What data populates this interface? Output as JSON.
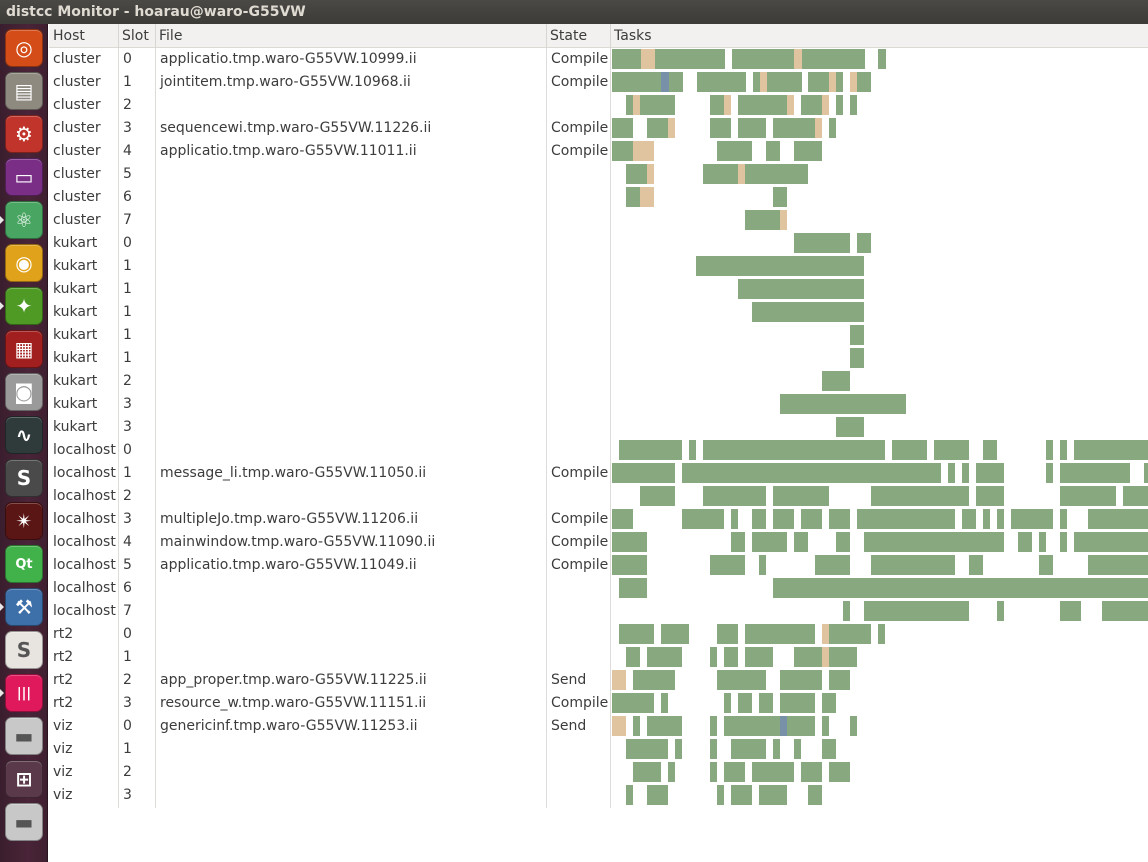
{
  "window": {
    "title": "distcc Monitor - hoarau@waro-G55VW"
  },
  "launcher": {
    "items": [
      {
        "name": "dash-icon",
        "glyph": "◎",
        "bg": "#d44c17",
        "running": false
      },
      {
        "name": "files-icon",
        "glyph": "▤",
        "bg": "#8f8a80",
        "running": false
      },
      {
        "name": "system-settings-icon",
        "glyph": "⚙",
        "bg": "#c0342c",
        "running": false
      },
      {
        "name": "workspace-switcher-icon",
        "glyph": "▭",
        "bg": "#7a2e86",
        "running": false
      },
      {
        "name": "atom-icon",
        "glyph": "⚛",
        "bg": "#48a562",
        "running": true
      },
      {
        "name": "chrome-icon",
        "glyph": "◉",
        "bg": "#e0a21a",
        "running": false
      },
      {
        "name": "gitkraken-icon",
        "glyph": "✦",
        "bg": "#4e9a25",
        "running": true
      },
      {
        "name": "terminal-red-icon",
        "glyph": "▦",
        "bg": "#a21f1f",
        "running": false
      },
      {
        "name": "camera-icon",
        "glyph": "◙",
        "bg": "#9a9a9a",
        "running": false
      },
      {
        "name": "system-monitor-icon",
        "glyph": "∿",
        "bg": "#2f3a3a",
        "running": false
      },
      {
        "name": "sublime-text-icon",
        "glyph": "S",
        "bg": "#4a4a4a",
        "running": false
      },
      {
        "name": "spider-icon",
        "glyph": "✴",
        "bg": "#5a1515",
        "running": false
      },
      {
        "name": "qt-creator-icon",
        "glyph": "Qt",
        "bg": "#41b24a",
        "running": false
      },
      {
        "name": "distcc-monitor-icon",
        "glyph": "⚒",
        "bg": "#3d6fa8",
        "running": true
      },
      {
        "name": "slack-icon",
        "glyph": "S",
        "bg": "#e8e4e0",
        "running": false
      },
      {
        "name": "gitter-icon",
        "glyph": "|||",
        "bg": "#e0185c",
        "running": true
      },
      {
        "name": "drive-icon-1",
        "glyph": "▬",
        "bg": "#c8c8c8",
        "running": false
      },
      {
        "name": "workspace-grid-icon",
        "glyph": "⊞",
        "bg": "#5a3a4a",
        "running": false
      },
      {
        "name": "drive-icon-2",
        "glyph": "▬",
        "bg": "#c8c8c8",
        "running": false
      }
    ]
  },
  "columns": {
    "host": "Host",
    "slot": "Slot",
    "file": "File",
    "state": "State",
    "tasks": "Tasks"
  },
  "colors": {
    "compile": "#88a880",
    "preprocess": "#e0c4a0",
    "send": "#7890a8"
  },
  "rows": [
    {
      "host": "cluster",
      "slot": "0",
      "file": "applicatio.tmp.waro-G55VW.10999.ii",
      "state": "Compile"
    },
    {
      "host": "cluster",
      "slot": "1",
      "file": "jointitem.tmp.waro-G55VW.10968.ii",
      "state": "Compile"
    },
    {
      "host": "cluster",
      "slot": "2",
      "file": "",
      "state": ""
    },
    {
      "host": "cluster",
      "slot": "3",
      "file": "sequencewi.tmp.waro-G55VW.11226.ii",
      "state": "Compile"
    },
    {
      "host": "cluster",
      "slot": "4",
      "file": "applicatio.tmp.waro-G55VW.11011.ii",
      "state": "Compile"
    },
    {
      "host": "cluster",
      "slot": "5",
      "file": "",
      "state": ""
    },
    {
      "host": "cluster",
      "slot": "6",
      "file": "",
      "state": ""
    },
    {
      "host": "cluster",
      "slot": "7",
      "file": "",
      "state": ""
    },
    {
      "host": "kukart",
      "slot": "0",
      "file": "",
      "state": ""
    },
    {
      "host": "kukart",
      "slot": "1",
      "file": "",
      "state": ""
    },
    {
      "host": "kukart",
      "slot": "1",
      "file": "",
      "state": ""
    },
    {
      "host": "kukart",
      "slot": "1",
      "file": "",
      "state": ""
    },
    {
      "host": "kukart",
      "slot": "1",
      "file": "",
      "state": ""
    },
    {
      "host": "kukart",
      "slot": "1",
      "file": "",
      "state": ""
    },
    {
      "host": "kukart",
      "slot": "2",
      "file": "",
      "state": ""
    },
    {
      "host": "kukart",
      "slot": "3",
      "file": "",
      "state": ""
    },
    {
      "host": "kukart",
      "slot": "3",
      "file": "",
      "state": ""
    },
    {
      "host": "localhost",
      "slot": "0",
      "file": "",
      "state": ""
    },
    {
      "host": "localhost",
      "slot": "1",
      "file": "message_li.tmp.waro-G55VW.11050.ii",
      "state": "Compile"
    },
    {
      "host": "localhost",
      "slot": "2",
      "file": "",
      "state": ""
    },
    {
      "host": "localhost",
      "slot": "3",
      "file": "multipleJo.tmp.waro-G55VW.11206.ii",
      "state": "Compile"
    },
    {
      "host": "localhost",
      "slot": "4",
      "file": "mainwindow.tmp.waro-G55VW.11090.ii",
      "state": "Compile"
    },
    {
      "host": "localhost",
      "slot": "5",
      "file": "applicatio.tmp.waro-G55VW.11049.ii",
      "state": "Compile"
    },
    {
      "host": "localhost",
      "slot": "6",
      "file": "",
      "state": ""
    },
    {
      "host": "localhost",
      "slot": "7",
      "file": "",
      "state": ""
    },
    {
      "host": "rt2",
      "slot": "0",
      "file": "",
      "state": ""
    },
    {
      "host": "rt2",
      "slot": "1",
      "file": "",
      "state": ""
    },
    {
      "host": "rt2",
      "slot": "2",
      "file": "app_proper.tmp.waro-G55VW.11225.ii",
      "state": "Send"
    },
    {
      "host": "rt2",
      "slot": "3",
      "file": "resource_w.tmp.waro-G55VW.11151.ii",
      "state": "Compile"
    },
    {
      "host": "viz",
      "slot": "0",
      "file": "genericinf.tmp.waro-G55VW.11253.ii",
      "state": "Send"
    },
    {
      "host": "viz",
      "slot": "1",
      "file": "",
      "state": ""
    },
    {
      "host": "viz",
      "slot": "2",
      "file": "",
      "state": ""
    },
    {
      "host": "viz",
      "slot": "3",
      "file": "",
      "state": ""
    }
  ]
}
